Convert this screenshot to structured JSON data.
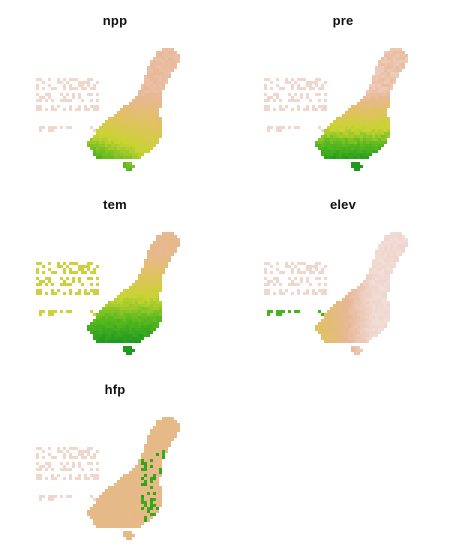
{
  "panels": [
    {
      "id": "npp",
      "title": "npp"
    },
    {
      "id": "pre",
      "title": "pre"
    },
    {
      "id": "tem",
      "title": "tem"
    },
    {
      "id": "elev",
      "title": "elev"
    },
    {
      "id": "hfp",
      "title": "hfp"
    }
  ],
  "colors": {
    "low": "#f2e2e1",
    "mid_low": "#e8b795",
    "mid": "#e0c25e",
    "mid_high": "#c8d432",
    "high": "#58b81e",
    "max": "#1f9a1f"
  }
}
